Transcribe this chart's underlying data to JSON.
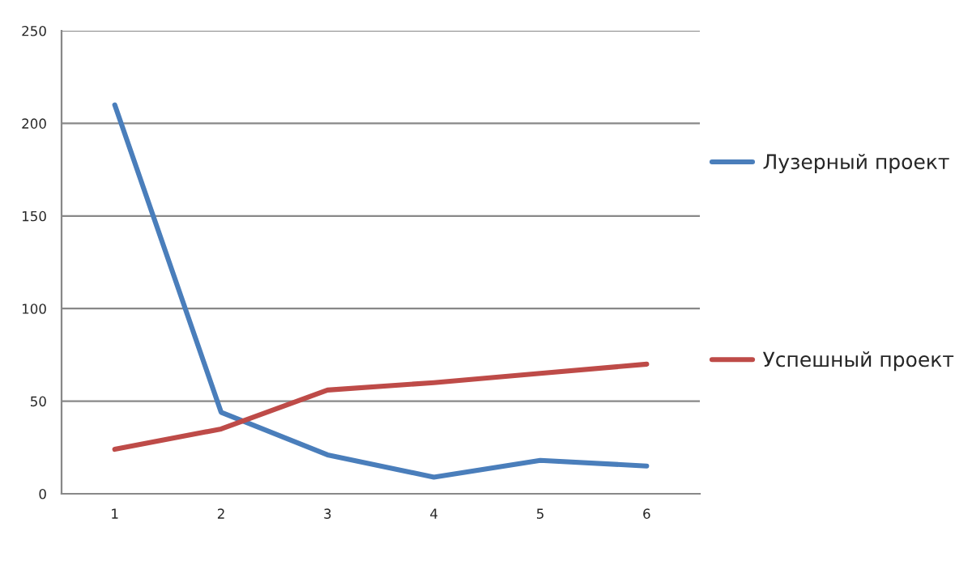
{
  "chart_data": {
    "type": "line",
    "categories": [
      "1",
      "2",
      "3",
      "4",
      "5",
      "6"
    ],
    "series": [
      {
        "name": "Лузерный проект",
        "color": "#4a7ebb",
        "values": [
          210,
          44,
          21,
          9,
          18,
          15
        ]
      },
      {
        "name": "Успешный проект",
        "color": "#be4b48",
        "values": [
          24,
          35,
          56,
          60,
          65,
          70
        ]
      }
    ],
    "ylim": [
      0,
      250
    ],
    "yticks": [
      0,
      50,
      100,
      150,
      200,
      250
    ],
    "grid": "y",
    "legend": "right",
    "marker": "none",
    "line_style": "solid"
  }
}
